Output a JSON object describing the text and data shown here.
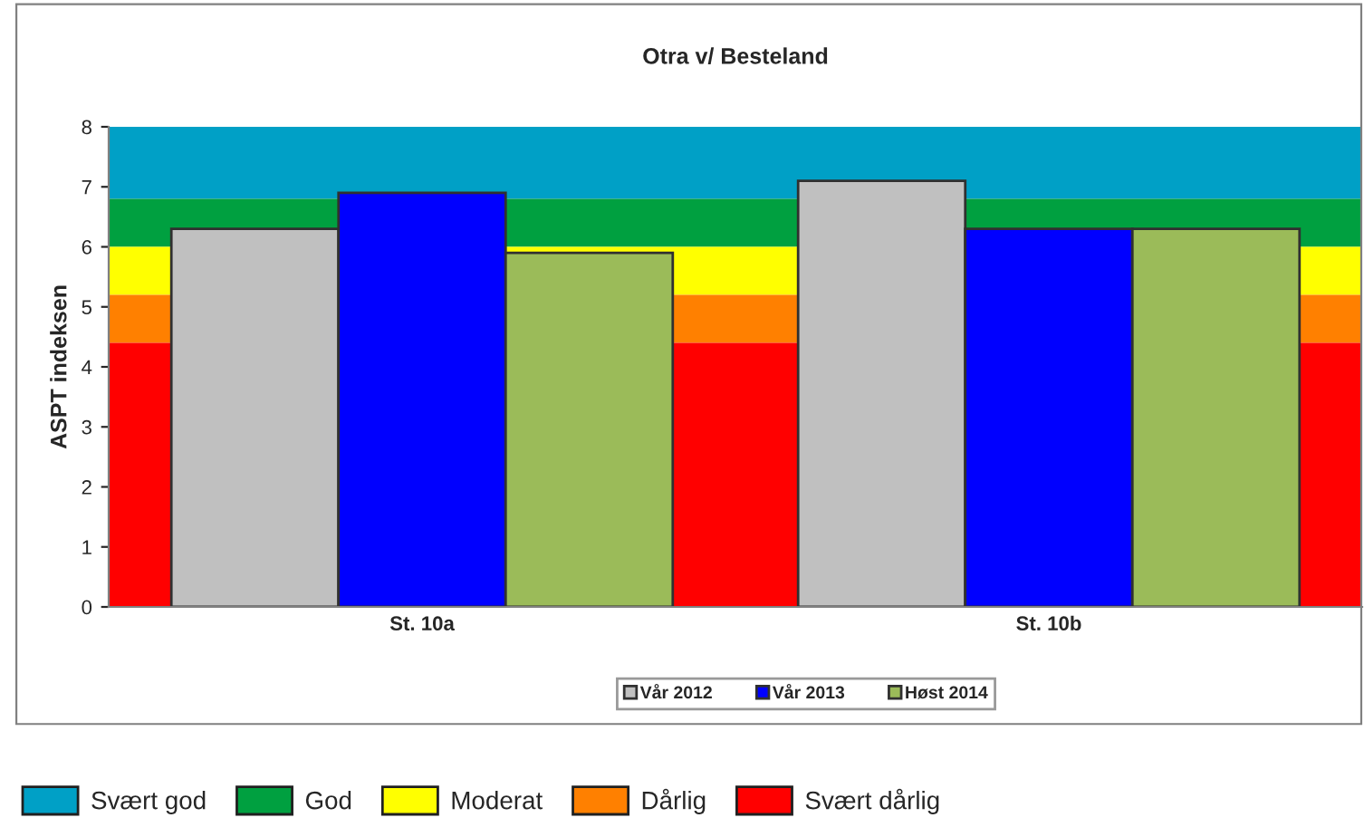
{
  "chart_data": {
    "type": "bar",
    "title": "Otra v/ Besteland",
    "ylabel": "ASPT indeksen",
    "categories": [
      "St. 10a",
      "St. 10b"
    ],
    "series": [
      {
        "name": "Vår 2012",
        "color": "#c0c0c0",
        "values": [
          6.3,
          7.1
        ]
      },
      {
        "name": "Vår 2013",
        "color": "#0000ff",
        "values": [
          6.9,
          6.3
        ]
      },
      {
        "name": "Høst 2014",
        "color": "#9bbb59",
        "values": [
          5.9,
          6.3
        ]
      }
    ],
    "ylim": [
      0,
      8
    ],
    "yticks": [
      0,
      1,
      2,
      3,
      4,
      5,
      6,
      7,
      8
    ],
    "grid": false,
    "legend": "bottom",
    "bands": [
      {
        "axis": "y",
        "from": 6.8,
        "to": 8,
        "label": "Svært god",
        "color": "#00a0c6"
      },
      {
        "axis": "y",
        "from": 6.0,
        "to": 6.8,
        "label": "God",
        "color": "#00a040"
      },
      {
        "axis": "y",
        "from": 5.2,
        "to": 6.0,
        "label": "Moderat",
        "color": "#ffff00"
      },
      {
        "axis": "y",
        "from": 4.4,
        "to": 5.2,
        "label": "Dårlig",
        "color": "#ff8000"
      },
      {
        "axis": "y",
        "from": 0,
        "to": 4.4,
        "label": "Svært dårlig",
        "color": "#ff0000"
      }
    ]
  }
}
